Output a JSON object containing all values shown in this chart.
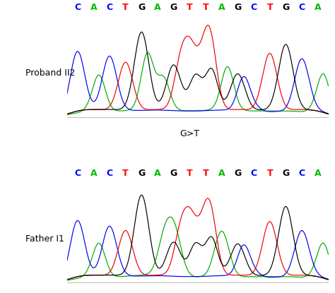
{
  "background_color": "#ffffff",
  "panels": [
    {
      "label": "Proband II2",
      "sequence": [
        "C",
        "A",
        "C",
        "T",
        "G",
        "A",
        "G",
        "T",
        "T",
        "A",
        "G",
        "C",
        "T",
        "G",
        "C",
        "A"
      ],
      "seq_colors": [
        "#0000ff",
        "#00bb00",
        "#0000ff",
        "#ff0000",
        "#000000",
        "#00bb00",
        "#000000",
        "#ff0000",
        "#ff0000",
        "#00bb00",
        "#000000",
        "#0000ff",
        "#ff0000",
        "#000000",
        "#0000ff",
        "#00bb00"
      ],
      "annotation": "G>T",
      "arrow_idx": 7,
      "peak_heights": {
        "blue": [
          0.72,
          0.05,
          0.65,
          0.05,
          0.04,
          0.05,
          0.04,
          0.04,
          0.04,
          0.05,
          0.04,
          0.08,
          0.04,
          0.04,
          0.62,
          0.06
        ],
        "green": [
          0.04,
          0.08,
          0.04,
          0.04,
          0.05,
          0.06,
          0.04,
          0.04,
          0.04,
          0.06,
          0.04,
          0.04,
          0.04,
          0.04,
          0.04,
          0.08
        ],
        "red": [
          0.05,
          0.05,
          0.05,
          0.58,
          0.05,
          0.05,
          0.05,
          0.72,
          0.65,
          0.05,
          0.05,
          0.05,
          0.68,
          0.05,
          0.05,
          0.05
        ],
        "black": [
          0.05,
          0.05,
          0.05,
          0.05,
          0.92,
          0.05,
          0.55,
          0.05,
          0.05,
          0.05,
          0.45,
          0.05,
          0.05,
          0.78,
          0.05,
          0.05
        ]
      },
      "secondary_peaks": {
        "blue": [
          0.0,
          0.0,
          0.0,
          0.0,
          0.0,
          0.0,
          0.0,
          0.0,
          0.0,
          0.0,
          0.38,
          0.0,
          0.0,
          0.0,
          0.0,
          0.0
        ],
        "green": [
          0.0,
          0.38,
          0.0,
          0.0,
          0.62,
          0.35,
          0.0,
          0.0,
          0.0,
          0.48,
          0.0,
          0.0,
          0.0,
          0.0,
          0.0,
          0.42
        ],
        "red": [
          0.0,
          0.0,
          0.0,
          0.0,
          0.0,
          0.0,
          0.38,
          0.0,
          0.42,
          0.0,
          0.0,
          0.0,
          0.0,
          0.0,
          0.0,
          0.0
        ],
        "black": [
          0.0,
          0.0,
          0.0,
          0.0,
          0.0,
          0.0,
          0.0,
          0.38,
          0.45,
          0.0,
          0.0,
          0.0,
          0.0,
          0.0,
          0.0,
          0.0
        ]
      }
    },
    {
      "label": "Father I1",
      "sequence": [
        "C",
        "A",
        "C",
        "T",
        "G",
        "A",
        "G",
        "T",
        "T",
        "A",
        "G",
        "C",
        "T",
        "G",
        "C",
        "A"
      ],
      "seq_colors": [
        "#0000ff",
        "#00bb00",
        "#0000ff",
        "#ff0000",
        "#000000",
        "#00bb00",
        "#000000",
        "#ff0000",
        "#ff0000",
        "#00bb00",
        "#000000",
        "#0000ff",
        "#ff0000",
        "#000000",
        "#0000ff",
        "#00bb00"
      ],
      "annotation": "G>T",
      "arrow_idx": 7,
      "peak_heights": {
        "blue": [
          0.68,
          0.05,
          0.6,
          0.05,
          0.04,
          0.05,
          0.04,
          0.04,
          0.04,
          0.05,
          0.04,
          0.08,
          0.04,
          0.04,
          0.55,
          0.06
        ],
        "green": [
          0.04,
          0.08,
          0.04,
          0.04,
          0.05,
          0.06,
          0.58,
          0.04,
          0.04,
          0.55,
          0.04,
          0.04,
          0.04,
          0.04,
          0.04,
          0.08
        ],
        "red": [
          0.05,
          0.05,
          0.05,
          0.55,
          0.05,
          0.05,
          0.05,
          0.68,
          0.6,
          0.05,
          0.05,
          0.05,
          0.65,
          0.05,
          0.05,
          0.05
        ],
        "black": [
          0.05,
          0.05,
          0.05,
          0.05,
          0.95,
          0.05,
          0.42,
          0.05,
          0.05,
          0.05,
          0.4,
          0.05,
          0.05,
          0.82,
          0.05,
          0.05
        ]
      },
      "secondary_peaks": {
        "blue": [
          0.0,
          0.0,
          0.0,
          0.0,
          0.0,
          0.0,
          0.0,
          0.0,
          0.0,
          0.0,
          0.35,
          0.0,
          0.0,
          0.0,
          0.0,
          0.0
        ],
        "green": [
          0.0,
          0.35,
          0.0,
          0.0,
          0.0,
          0.32,
          0.0,
          0.0,
          0.0,
          0.0,
          0.0,
          0.0,
          0.0,
          0.0,
          0.0,
          0.38
        ],
        "red": [
          0.0,
          0.0,
          0.0,
          0.0,
          0.0,
          0.0,
          0.35,
          0.0,
          0.38,
          0.0,
          0.0,
          0.0,
          0.0,
          0.0,
          0.0,
          0.0
        ],
        "black": [
          0.0,
          0.0,
          0.0,
          0.0,
          0.0,
          0.0,
          0.0,
          0.35,
          0.42,
          0.0,
          0.0,
          0.0,
          0.0,
          0.0,
          0.0,
          0.0
        ]
      }
    }
  ],
  "seq_fontsize": 9,
  "label_fontsize": 9,
  "annotation_fontsize": 9
}
